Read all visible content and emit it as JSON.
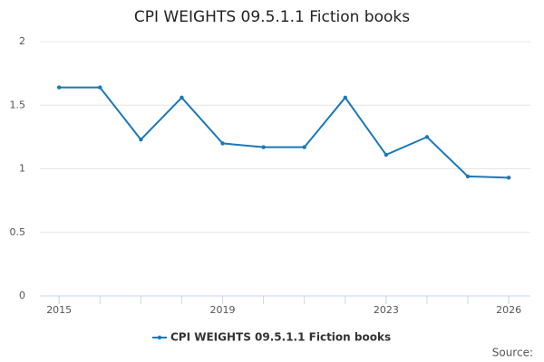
{
  "chart_data": {
    "type": "line",
    "title": "CPI WEIGHTS 09.5.1.1 Fiction books",
    "x": [
      2015,
      2016,
      2017,
      2018,
      2019,
      2020,
      2021,
      2022,
      2023,
      2024,
      2025,
      2026
    ],
    "series": [
      {
        "name": "CPI WEIGHTS 09.5.1.1 Fiction books",
        "color": "#1a78b8",
        "values": [
          1.64,
          1.64,
          1.23,
          1.56,
          1.2,
          1.17,
          1.17,
          1.56,
          1.11,
          1.25,
          0.94,
          0.93
        ]
      }
    ],
    "xlim": [
      2014.53,
      2026.53
    ],
    "xticks": [
      2015,
      2019,
      2023,
      2026
    ],
    "ylim": [
      0,
      2
    ],
    "yticks": [
      0,
      0.5,
      1,
      1.5,
      2
    ],
    "grid": true,
    "legend": "bottom",
    "source": "Source:"
  }
}
